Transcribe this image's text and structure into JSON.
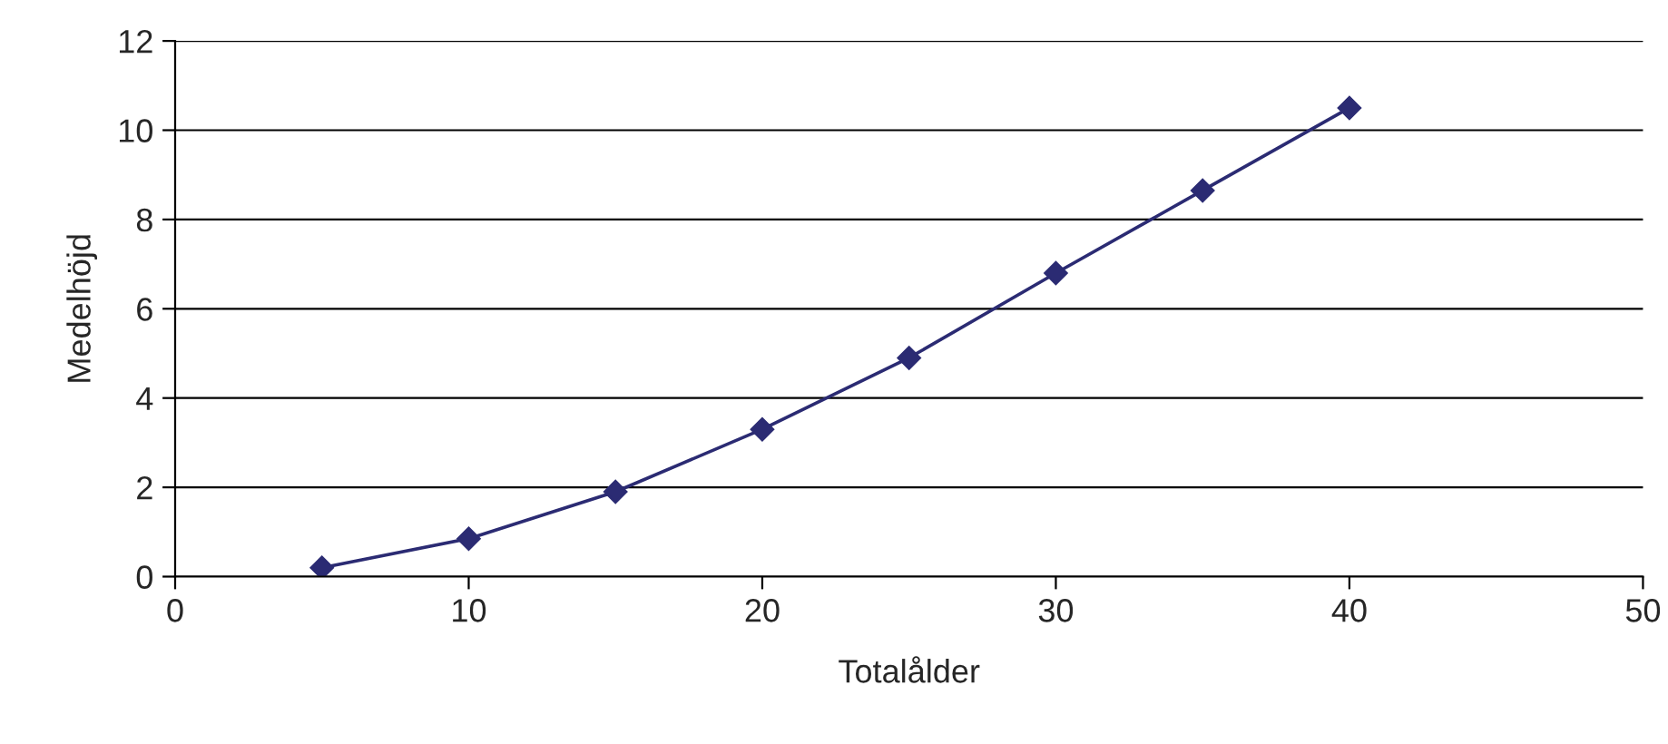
{
  "chart_data": {
    "type": "line",
    "xlabel": "Totalålder",
    "ylabel": "Medelhöjd",
    "x": [
      5,
      10,
      15,
      20,
      25,
      30,
      35,
      40
    ],
    "series": [
      {
        "color": "#2b2b73",
        "values": [
          0.2,
          0.85,
          1.9,
          3.3,
          4.9,
          6.8,
          8.65,
          10.5
        ]
      }
    ],
    "xlim": [
      0,
      50
    ],
    "xticks": [
      0,
      10,
      20,
      30,
      40,
      50
    ],
    "ylim": [
      0,
      12
    ],
    "yticks": [
      0,
      2,
      4,
      6,
      8,
      10,
      12
    ],
    "grid": "y",
    "marker": "diamond",
    "line_style": "solid"
  }
}
